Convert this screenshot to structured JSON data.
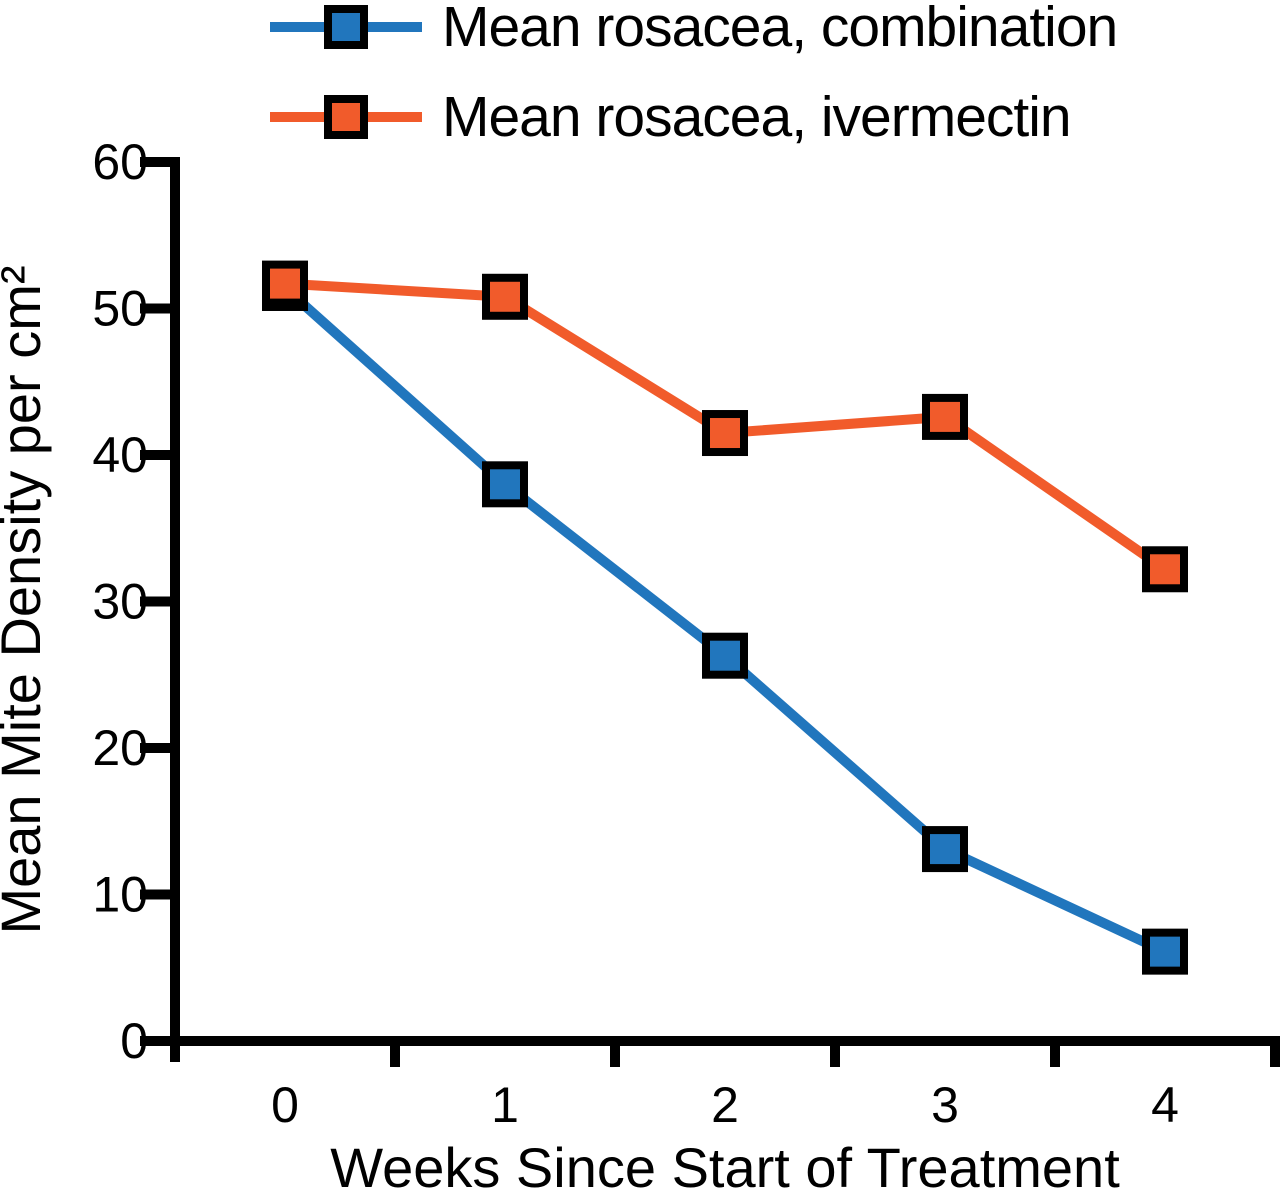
{
  "chart_data": {
    "type": "line",
    "title": "",
    "xlabel": "Weeks Since Start of Treatment",
    "ylabel": "Mean Mite Density per cm²",
    "x": [
      0,
      1,
      2,
      3,
      4
    ],
    "x_tick_labels": [
      "0",
      "1",
      "2",
      "3",
      "4"
    ],
    "y_ticks": [
      0,
      10,
      20,
      30,
      40,
      50,
      60
    ],
    "ylim": [
      0,
      60
    ],
    "xlim": [
      -0.5,
      4.5
    ],
    "grid": false,
    "legend_position": "top-left",
    "marker_shape": "square",
    "series": [
      {
        "name": "Mean rosacea, combination",
        "color": "#2176bd",
        "values": [
          51.4,
          38.0,
          26.3,
          13.1,
          6.1
        ]
      },
      {
        "name": "Mean rosacea, ivermectin",
        "color": "#f15b2b",
        "values": [
          51.7,
          50.8,
          41.5,
          42.6,
          32.2
        ]
      }
    ]
  },
  "colors": {
    "axis": "#000000",
    "marker_border": "#000000",
    "background": "#ffffff",
    "text": "#000000"
  }
}
